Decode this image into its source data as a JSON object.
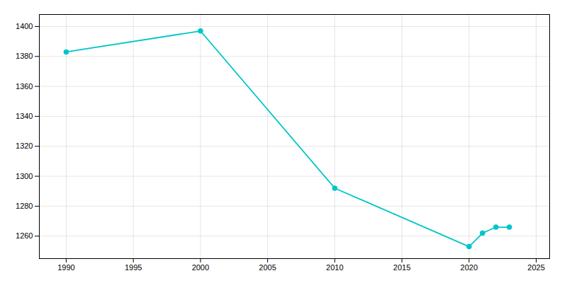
{
  "chart_data": {
    "type": "line",
    "x": [
      1990,
      2000,
      2010,
      2020,
      2021,
      2022,
      2023
    ],
    "values": [
      1383,
      1397,
      1292,
      1253,
      1262,
      1266,
      1266
    ],
    "color": "#00C5C8",
    "marker": "circle",
    "xlim": [
      1988,
      2026
    ],
    "xticks": [
      1990,
      1995,
      2000,
      2005,
      2010,
      2015,
      2020,
      2025
    ],
    "ylim": [
      1245,
      1408
    ],
    "yticks": [
      1260,
      1280,
      1300,
      1320,
      1340,
      1360,
      1380,
      1400
    ],
    "grid": true
  }
}
